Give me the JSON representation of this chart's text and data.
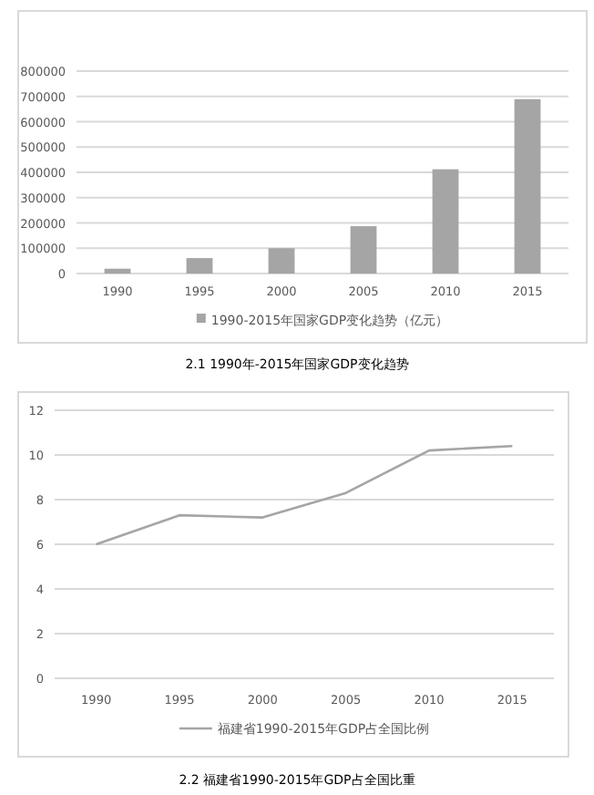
{
  "chart_data": [
    {
      "type": "bar",
      "categories": [
        "1990",
        "1995",
        "2000",
        "2005",
        "2010",
        "2015"
      ],
      "series": [
        {
          "name": "1990-2015年国家GDP变化趋势（亿元）",
          "color": "#a5a5a5",
          "values": [
            19000,
            61000,
            100000,
            187000,
            412000,
            689000
          ]
        }
      ],
      "ylim": [
        0,
        800000
      ],
      "yticks": [
        0,
        100000,
        200000,
        300000,
        400000,
        500000,
        600000,
        700000,
        800000
      ],
      "grid": "y",
      "legend": "bottom",
      "annotations": [
        "2.1 1990年-2015年国家GDP变化趋势"
      ]
    },
    {
      "type": "line",
      "categories": [
        "1990",
        "1995",
        "2000",
        "2005",
        "2010",
        "2015"
      ],
      "series": [
        {
          "name": "福建省1990-2015年GDP占全国比例",
          "color": "#a5a5a5",
          "values": [
            6.0,
            7.3,
            7.2,
            8.3,
            10.2,
            10.4
          ]
        }
      ],
      "ylim": [
        0,
        12
      ],
      "yticks": [
        0,
        2,
        4,
        6,
        8,
        10,
        12
      ],
      "grid": "y",
      "legend": "bottom",
      "marker": "none",
      "annotations": [
        "2.2 福建省1990-2015年GDP占全国比重"
      ]
    }
  ]
}
